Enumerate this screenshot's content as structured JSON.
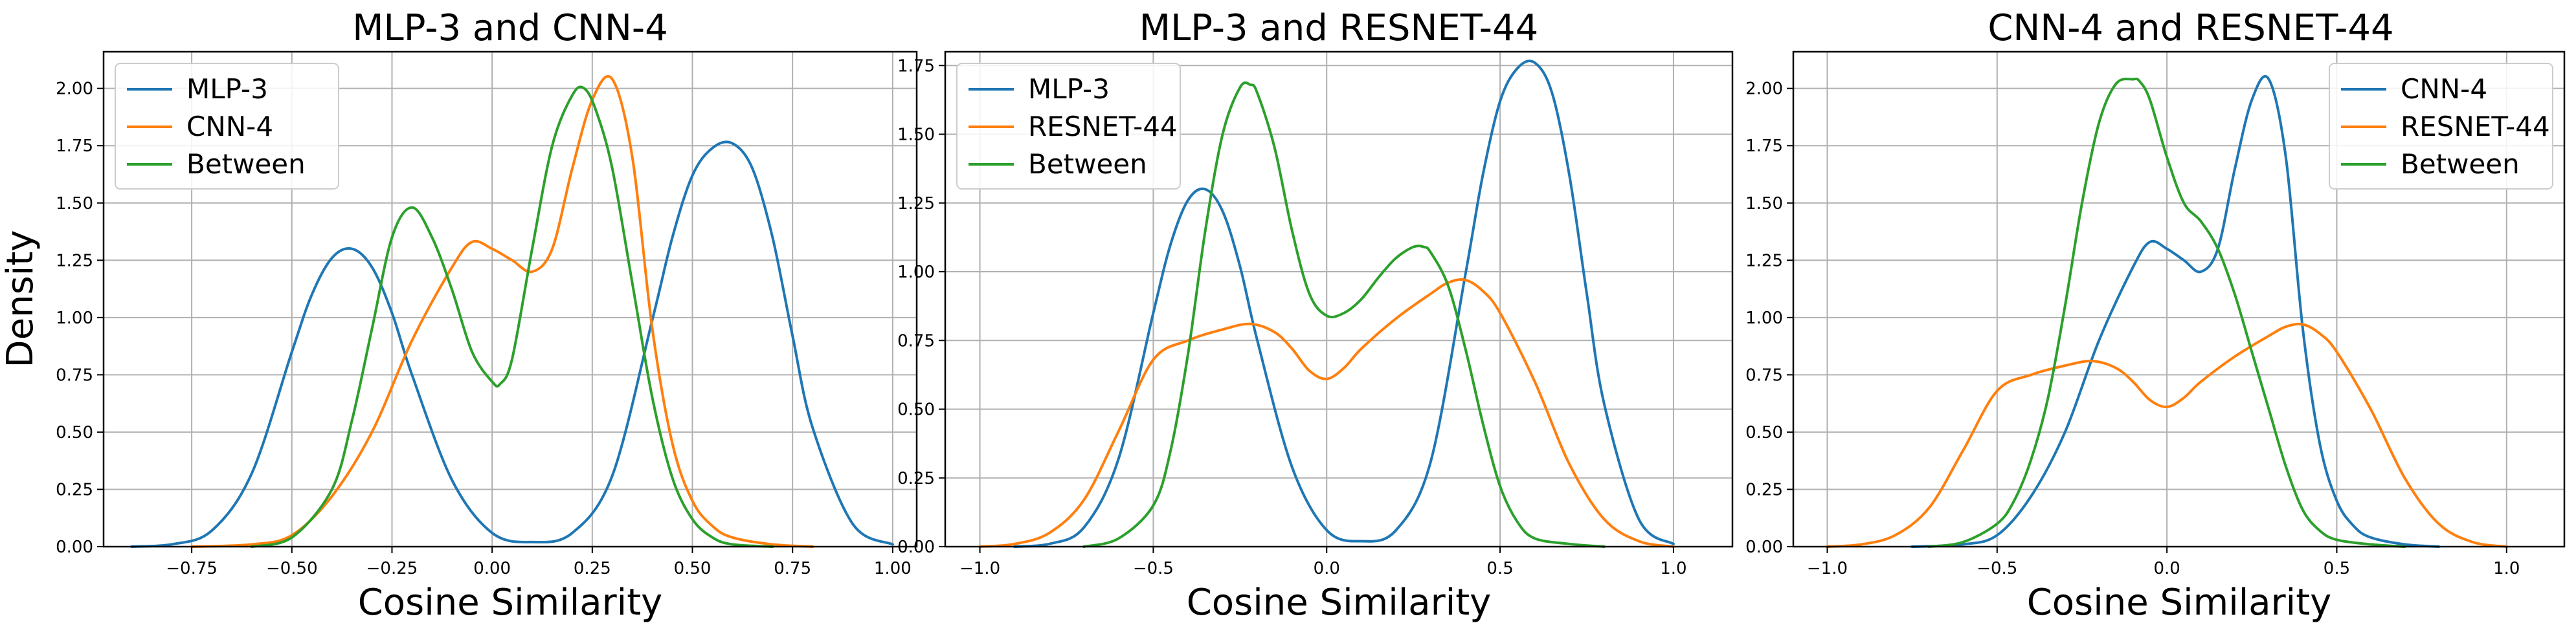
{
  "colors": {
    "blue": "#1f77b4",
    "orange": "#ff7f0e",
    "green": "#2ca02c"
  },
  "chart_data": [
    {
      "type": "line",
      "title": "MLP-3 and CNN-4",
      "xlabel": "Cosine Similarity",
      "ylabel": "Density",
      "xlim": [
        -0.97,
        1.06
      ],
      "ylim": [
        0,
        2.16
      ],
      "xticks": [
        -0.75,
        -0.5,
        -0.25,
        0.0,
        0.25,
        0.5,
        0.75,
        1.0
      ],
      "xtick_labels": [
        "−0.75",
        "−0.50",
        "−0.25",
        "0.00",
        "0.25",
        "0.50",
        "0.75",
        "1.00"
      ],
      "yticks": [
        0,
        0.25,
        0.5,
        0.75,
        1.0,
        1.25,
        1.5,
        1.75,
        2.0
      ],
      "ytick_labels": [
        "0.00",
        "0.25",
        "0.50",
        "0.75",
        "1.00",
        "1.25",
        "1.50",
        "1.75",
        "2.00"
      ],
      "grid": true,
      "legend_position": "upper-left",
      "series": [
        {
          "name": "MLP-3",
          "color": "#1f77b4",
          "x": [
            -0.9,
            -0.8,
            -0.7,
            -0.6,
            -0.5,
            -0.45,
            -0.4,
            -0.35,
            -0.3,
            -0.25,
            -0.2,
            -0.1,
            0.0,
            0.1,
            0.2,
            0.3,
            0.4,
            0.45,
            0.5,
            0.55,
            0.6,
            0.65,
            0.7,
            0.75,
            0.8,
            0.9,
            1.0
          ],
          "y": [
            0.0,
            0.01,
            0.07,
            0.32,
            0.85,
            1.1,
            1.26,
            1.3,
            1.22,
            1.02,
            0.75,
            0.29,
            0.06,
            0.02,
            0.06,
            0.31,
            0.99,
            1.35,
            1.62,
            1.74,
            1.76,
            1.65,
            1.35,
            0.92,
            0.52,
            0.1,
            0.01
          ]
        },
        {
          "name": "CNN-4",
          "color": "#ff7f0e",
          "x": [
            -0.75,
            -0.6,
            -0.5,
            -0.4,
            -0.3,
            -0.2,
            -0.1,
            -0.05,
            0.0,
            0.05,
            0.1,
            0.15,
            0.2,
            0.25,
            0.3,
            0.35,
            0.4,
            0.45,
            0.5,
            0.55,
            0.6,
            0.7,
            0.8
          ],
          "y": [
            0.0,
            0.01,
            0.05,
            0.22,
            0.5,
            0.9,
            1.22,
            1.33,
            1.3,
            1.25,
            1.2,
            1.3,
            1.65,
            1.95,
            2.04,
            1.7,
            0.95,
            0.45,
            0.2,
            0.09,
            0.04,
            0.01,
            0.0
          ]
        },
        {
          "name": "Between",
          "color": "#2ca02c",
          "x": [
            -0.6,
            -0.5,
            -0.4,
            -0.35,
            -0.3,
            -0.25,
            -0.2,
            -0.15,
            -0.1,
            -0.05,
            0.0,
            0.02,
            0.05,
            0.1,
            0.15,
            0.2,
            0.23,
            0.26,
            0.3,
            0.35,
            0.4,
            0.45,
            0.5,
            0.55,
            0.6,
            0.7
          ],
          "y": [
            0.0,
            0.04,
            0.25,
            0.55,
            0.95,
            1.35,
            1.48,
            1.35,
            1.12,
            0.85,
            0.72,
            0.71,
            0.82,
            1.3,
            1.75,
            1.97,
            2.0,
            1.9,
            1.65,
            1.15,
            0.65,
            0.3,
            0.12,
            0.04,
            0.01,
            0.0
          ]
        }
      ]
    },
    {
      "type": "line",
      "title": "MLP-3 and RESNET-44",
      "xlabel": "Cosine Similarity",
      "ylabel": "",
      "xlim": [
        -1.1,
        1.17
      ],
      "ylim": [
        0,
        1.8
      ],
      "xticks": [
        -1.0,
        -0.5,
        0.0,
        0.5,
        1.0
      ],
      "xtick_labels": [
        "−1.0",
        "−0.5",
        "0.0",
        "0.5",
        "1.0"
      ],
      "yticks": [
        0,
        0.25,
        0.5,
        0.75,
        1.0,
        1.25,
        1.5,
        1.75
      ],
      "ytick_labels": [
        "0.00",
        "0.25",
        "0.50",
        "0.75",
        "1.00",
        "1.25",
        "1.50",
        "1.75"
      ],
      "grid": true,
      "legend_position": "upper-left",
      "series": [
        {
          "name": "MLP-3",
          "color": "#1f77b4",
          "x": [
            -0.9,
            -0.8,
            -0.7,
            -0.6,
            -0.5,
            -0.45,
            -0.4,
            -0.35,
            -0.3,
            -0.25,
            -0.2,
            -0.1,
            0.0,
            0.1,
            0.2,
            0.3,
            0.4,
            0.45,
            0.5,
            0.55,
            0.6,
            0.65,
            0.7,
            0.75,
            0.8,
            0.9,
            1.0
          ],
          "y": [
            0.0,
            0.01,
            0.07,
            0.32,
            0.85,
            1.1,
            1.26,
            1.3,
            1.22,
            1.02,
            0.75,
            0.29,
            0.06,
            0.02,
            0.06,
            0.31,
            0.99,
            1.35,
            1.62,
            1.74,
            1.76,
            1.65,
            1.35,
            0.92,
            0.52,
            0.1,
            0.01
          ]
        },
        {
          "name": "RESNET-44",
          "color": "#ff7f0e",
          "x": [
            -1.0,
            -0.9,
            -0.8,
            -0.7,
            -0.6,
            -0.5,
            -0.4,
            -0.3,
            -0.22,
            -0.15,
            -0.1,
            -0.05,
            0.0,
            0.05,
            0.1,
            0.2,
            0.3,
            0.35,
            0.4,
            0.45,
            0.5,
            0.6,
            0.7,
            0.8,
            0.9,
            1.0
          ],
          "y": [
            0.0,
            0.01,
            0.05,
            0.17,
            0.42,
            0.68,
            0.75,
            0.79,
            0.81,
            0.78,
            0.72,
            0.64,
            0.61,
            0.65,
            0.72,
            0.83,
            0.92,
            0.96,
            0.97,
            0.93,
            0.85,
            0.6,
            0.3,
            0.1,
            0.02,
            0.0
          ]
        },
        {
          "name": "Between",
          "color": "#2ca02c",
          "x": [
            -0.7,
            -0.6,
            -0.5,
            -0.45,
            -0.4,
            -0.35,
            -0.3,
            -0.25,
            -0.22,
            -0.2,
            -0.15,
            -0.1,
            -0.05,
            0.0,
            0.05,
            0.1,
            0.15,
            0.2,
            0.25,
            0.28,
            0.3,
            0.35,
            0.4,
            0.45,
            0.5,
            0.55,
            0.6,
            0.7,
            0.8
          ],
          "y": [
            0.0,
            0.03,
            0.15,
            0.35,
            0.7,
            1.15,
            1.5,
            1.67,
            1.68,
            1.65,
            1.45,
            1.15,
            0.92,
            0.84,
            0.85,
            0.9,
            0.98,
            1.05,
            1.09,
            1.09,
            1.07,
            0.95,
            0.72,
            0.45,
            0.22,
            0.09,
            0.03,
            0.01,
            0.0
          ]
        }
      ]
    },
    {
      "type": "line",
      "title": "CNN-4 and RESNET-44",
      "xlabel": "Cosine Similarity",
      "ylabel": "",
      "xlim": [
        -1.1,
        1.17
      ],
      "ylim": [
        0,
        2.16
      ],
      "xticks": [
        -1.0,
        -0.5,
        0.0,
        0.5,
        1.0
      ],
      "xtick_labels": [
        "−1.0",
        "−0.5",
        "0.0",
        "0.5",
        "1.0"
      ],
      "yticks": [
        0,
        0.25,
        0.5,
        0.75,
        1.0,
        1.25,
        1.5,
        1.75,
        2.0
      ],
      "ytick_labels": [
        "0.00",
        "0.25",
        "0.50",
        "0.75",
        "1.00",
        "1.25",
        "1.50",
        "1.75",
        "2.00"
      ],
      "grid": true,
      "legend_position": "upper-right",
      "series": [
        {
          "name": "CNN-4",
          "color": "#1f77b4",
          "x": [
            -0.75,
            -0.6,
            -0.5,
            -0.4,
            -0.3,
            -0.2,
            -0.1,
            -0.05,
            0.0,
            0.05,
            0.1,
            0.15,
            0.2,
            0.25,
            0.3,
            0.35,
            0.4,
            0.45,
            0.5,
            0.55,
            0.6,
            0.7,
            0.8
          ],
          "y": [
            0.0,
            0.01,
            0.05,
            0.22,
            0.5,
            0.9,
            1.22,
            1.33,
            1.3,
            1.25,
            1.2,
            1.3,
            1.65,
            1.95,
            2.04,
            1.7,
            0.95,
            0.45,
            0.2,
            0.09,
            0.04,
            0.01,
            0.0
          ]
        },
        {
          "name": "RESNET-44",
          "color": "#ff7f0e",
          "x": [
            -1.0,
            -0.9,
            -0.8,
            -0.7,
            -0.6,
            -0.5,
            -0.4,
            -0.3,
            -0.22,
            -0.15,
            -0.1,
            -0.05,
            0.0,
            0.05,
            0.1,
            0.2,
            0.3,
            0.35,
            0.4,
            0.45,
            0.5,
            0.6,
            0.7,
            0.8,
            0.9,
            1.0
          ],
          "y": [
            0.0,
            0.01,
            0.05,
            0.17,
            0.42,
            0.68,
            0.75,
            0.79,
            0.81,
            0.78,
            0.72,
            0.64,
            0.61,
            0.65,
            0.72,
            0.83,
            0.92,
            0.96,
            0.97,
            0.93,
            0.85,
            0.6,
            0.3,
            0.1,
            0.02,
            0.0
          ]
        },
        {
          "name": "Between",
          "color": "#2ca02c",
          "x": [
            -0.7,
            -0.6,
            -0.5,
            -0.45,
            -0.4,
            -0.35,
            -0.3,
            -0.25,
            -0.2,
            -0.15,
            -0.1,
            -0.08,
            -0.05,
            0.0,
            0.05,
            0.1,
            0.15,
            0.2,
            0.25,
            0.3,
            0.35,
            0.4,
            0.45,
            0.5,
            0.6,
            0.7
          ],
          "y": [
            0.0,
            0.02,
            0.1,
            0.2,
            0.38,
            0.65,
            1.05,
            1.5,
            1.85,
            2.02,
            2.04,
            2.03,
            1.95,
            1.7,
            1.5,
            1.42,
            1.3,
            1.1,
            0.85,
            0.6,
            0.35,
            0.16,
            0.07,
            0.03,
            0.01,
            0.0
          ]
        }
      ]
    }
  ]
}
